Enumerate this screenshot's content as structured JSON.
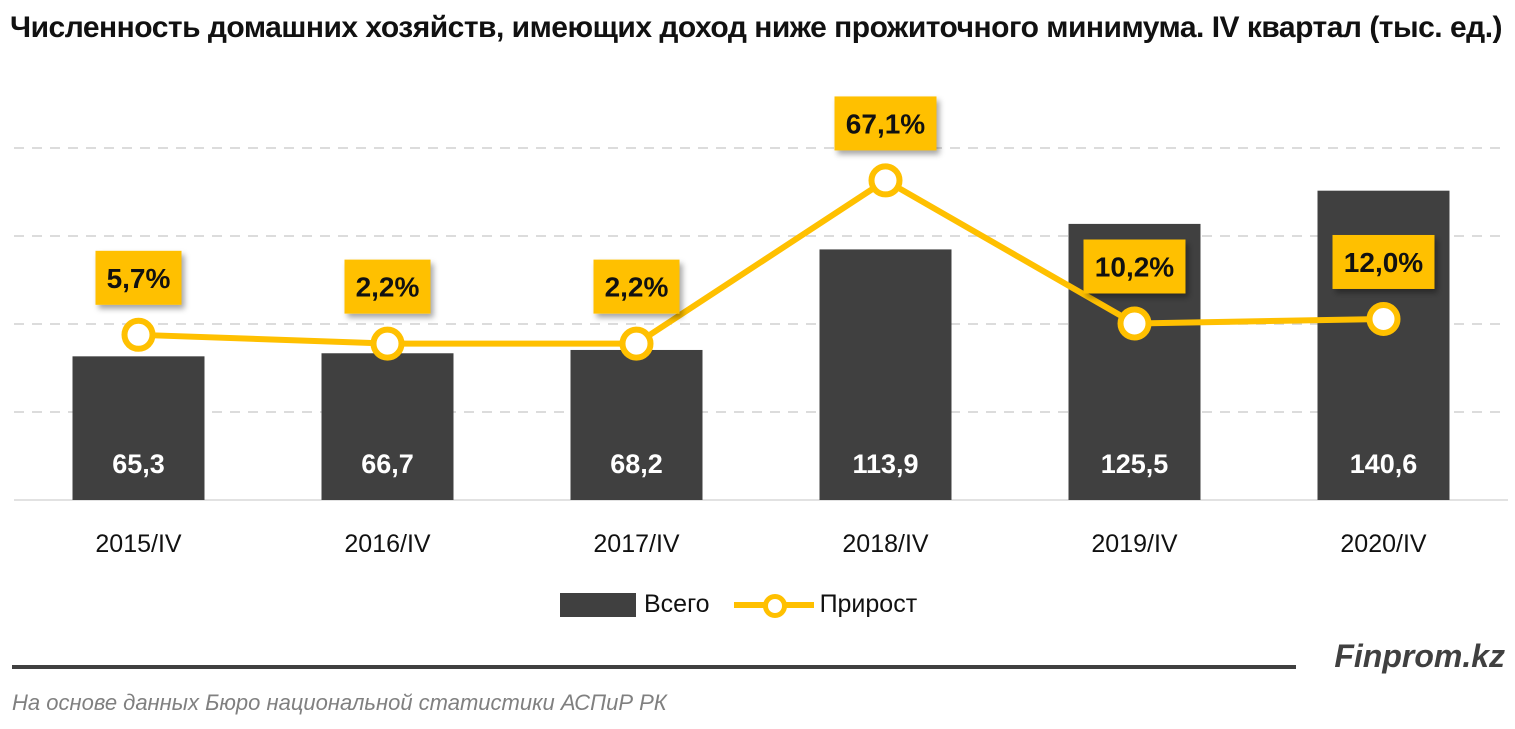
{
  "chart_data": {
    "type": "bar",
    "title": "Численность домашних хозяйств, имеющих доход ниже прожиточного минимума. IV квартал  (тыс. ед.)",
    "categories": [
      "2015/IV",
      "2016/IV",
      "2017/IV",
      "2018/IV",
      "2019/IV",
      "2020/IV"
    ],
    "series": [
      {
        "name": "Всего",
        "type": "bar",
        "axis": "primary",
        "values": [
          65.3,
          66.7,
          68.2,
          113.9,
          125.5,
          140.6
        ],
        "labels": [
          "65,3",
          "66,7",
          "68,2",
          "113,9",
          "125,5",
          "140,6"
        ],
        "color": "#404040"
      },
      {
        "name": "Прирост",
        "type": "line",
        "axis": "secondary",
        "unit": "%",
        "values": [
          5.7,
          2.2,
          2.2,
          67.1,
          10.2,
          12.0
        ],
        "labels": [
          "5,7%",
          "2,2%",
          "2,2%",
          "67,1%",
          "10,2%",
          "12,0%"
        ],
        "color": "#FFC000"
      }
    ],
    "ylim": [
      0,
      160
    ],
    "y2lim": [
      -60,
      80
    ],
    "y_gridlines": [
      40,
      80,
      120,
      160
    ],
    "grid": true,
    "axes_labels_visible": false,
    "legend_position": "bottom"
  },
  "footer": {
    "brand": "Finprom.kz",
    "source": "На основе данных  Бюро национальной  статистики АСПиР РК"
  }
}
